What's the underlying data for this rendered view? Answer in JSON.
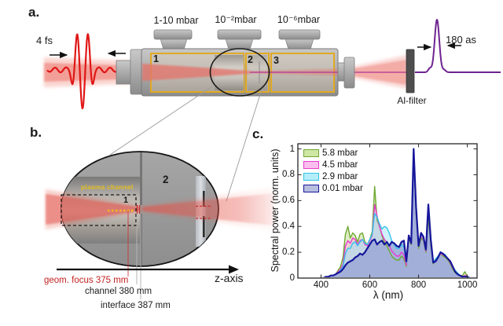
{
  "figure": {
    "panel_a": {
      "label": "a.",
      "input_pulse_label": "4 fs",
      "pressure_labels": [
        "1-10 mbar",
        "10⁻²mbar",
        "10⁻⁶mbar"
      ],
      "section_numbers": [
        "1",
        "2",
        "3"
      ],
      "filter_label": "Al-filter",
      "output_pulse_label": "180 as"
    },
    "panel_b": {
      "label": "b.",
      "plasma_channel_label": "plasma channel",
      "cell_number": "1",
      "section_number": "2",
      "axis_label": "z-axis",
      "focus_label": "geom. focus 375 mm",
      "channel_label": "channel 380 mm",
      "interface_label": "interface 387 mm"
    },
    "panel_c": {
      "label": "c."
    }
  },
  "colors": {
    "beam_red": "#e2756d",
    "waveform_red": "#e01616",
    "xuv_purple": "#b53c96",
    "pulse_purple": "#6e2390",
    "chamber_yellow": "#e2a922",
    "focus_red": "#c42222"
  },
  "chart_data": {
    "type": "area",
    "title": "",
    "xlabel": "λ (nm)",
    "ylabel": "Spectral power (norm. units)",
    "xlim": [
      305,
      1040
    ],
    "ylim": [
      0,
      1.04
    ],
    "x_ticks": [
      400,
      600,
      800,
      1000
    ],
    "y_ticks": [
      0,
      0.2,
      0.4,
      0.6,
      0.8,
      1
    ],
    "grid": false,
    "legend_position": "top-left",
    "x": [
      400,
      410,
      420,
      430,
      440,
      450,
      460,
      470,
      480,
      490,
      500,
      510,
      520,
      530,
      540,
      550,
      560,
      570,
      580,
      590,
      600,
      610,
      620,
      630,
      640,
      650,
      660,
      670,
      680,
      690,
      700,
      710,
      720,
      730,
      740,
      750,
      760,
      770,
      780,
      790,
      800,
      810,
      820,
      830,
      840,
      850,
      860,
      870,
      880,
      890,
      900,
      910,
      920,
      930,
      940,
      950,
      960,
      970,
      980,
      990,
      1000,
      1010,
      1020,
      1030,
      1040
    ],
    "series": [
      {
        "name": "5.8 mbar",
        "line_color": "#6fa832",
        "swatch_fill": "#cfe6a4",
        "fill_color": "rgba(190,220,140,0.50)",
        "line_width": 1.4,
        "values": [
          0,
          0,
          0.01,
          0.01,
          0.02,
          0.02,
          0.03,
          0.06,
          0.09,
          0.16,
          0.34,
          0.4,
          0.31,
          0.35,
          0.33,
          0.28,
          0.34,
          0.35,
          0.28,
          0.26,
          0.3,
          0.36,
          0.71,
          0.45,
          0.4,
          0.33,
          0.28,
          0.25,
          0.21,
          0.17,
          0.15,
          0.14,
          0.14,
          0.17,
          0.15,
          0.09,
          0.31,
          0.26,
          0.97,
          0.5,
          0.23,
          0.31,
          0.29,
          0.2,
          0.48,
          0.26,
          0.11,
          0.14,
          0.17,
          0.19,
          0.17,
          0.16,
          0.14,
          0.11,
          0.07,
          0.04,
          0.03,
          0.02,
          0.02,
          0.05,
          0.01,
          0,
          0,
          0,
          0
        ]
      },
      {
        "name": "4.5 mbar",
        "line_color": "#e93cce",
        "swatch_fill": "#f9c0ee",
        "fill_color": "rgba(248,170,232,0.45)",
        "line_width": 1.4,
        "values": [
          0,
          0,
          0.01,
          0.01,
          0.02,
          0.02,
          0.03,
          0.05,
          0.07,
          0.11,
          0.25,
          0.29,
          0.27,
          0.31,
          0.3,
          0.26,
          0.29,
          0.3,
          0.26,
          0.25,
          0.29,
          0.33,
          0.57,
          0.48,
          0.4,
          0.34,
          0.3,
          0.28,
          0.25,
          0.21,
          0.19,
          0.17,
          0.17,
          0.2,
          0.18,
          0.1,
          0.32,
          0.27,
          0.98,
          0.52,
          0.25,
          0.33,
          0.3,
          0.21,
          0.54,
          0.28,
          0.12,
          0.14,
          0.17,
          0.19,
          0.18,
          0.17,
          0.15,
          0.12,
          0.08,
          0.05,
          0.03,
          0.02,
          0.01,
          0.02,
          0.01,
          0,
          0,
          0,
          0
        ]
      },
      {
        "name": "2.9 mbar",
        "line_color": "#35c3ea",
        "swatch_fill": "#b5eefb",
        "fill_color": "rgba(160,225,245,0.50)",
        "line_width": 1.4,
        "values": [
          0,
          0,
          0.01,
          0.01,
          0.02,
          0.02,
          0.03,
          0.04,
          0.06,
          0.09,
          0.19,
          0.23,
          0.23,
          0.27,
          0.28,
          0.25,
          0.28,
          0.3,
          0.27,
          0.26,
          0.3,
          0.34,
          0.5,
          0.47,
          0.42,
          0.38,
          0.4,
          0.39,
          0.35,
          0.29,
          0.26,
          0.23,
          0.23,
          0.26,
          0.24,
          0.12,
          0.33,
          0.28,
          0.99,
          0.55,
          0.26,
          0.34,
          0.31,
          0.22,
          0.57,
          0.3,
          0.13,
          0.15,
          0.17,
          0.2,
          0.19,
          0.18,
          0.15,
          0.13,
          0.09,
          0.06,
          0.04,
          0.02,
          0.01,
          0.01,
          0.01,
          0,
          0,
          0,
          0
        ]
      },
      {
        "name": "0.01 mbar",
        "line_color": "#16169b",
        "swatch_fill": "#b7bede",
        "fill_color": "rgba(150,162,212,0.75)",
        "line_width": 2.2,
        "values": [
          0,
          0,
          0.01,
          0.01,
          0.02,
          0.02,
          0.03,
          0.04,
          0.05,
          0.07,
          0.1,
          0.12,
          0.13,
          0.14,
          0.16,
          0.17,
          0.19,
          0.18,
          0.2,
          0.23,
          0.26,
          0.29,
          0.3,
          0.26,
          0.28,
          0.29,
          0.26,
          0.28,
          0.25,
          0.28,
          0.27,
          0.25,
          0.24,
          0.28,
          0.29,
          0.13,
          0.33,
          0.27,
          1.0,
          0.55,
          0.25,
          0.35,
          0.32,
          0.22,
          0.57,
          0.3,
          0.12,
          0.13,
          0.16,
          0.2,
          0.19,
          0.17,
          0.15,
          0.13,
          0.09,
          0.05,
          0.03,
          0.02,
          0.01,
          0.01,
          0.01,
          0,
          0,
          0,
          0
        ]
      }
    ]
  }
}
